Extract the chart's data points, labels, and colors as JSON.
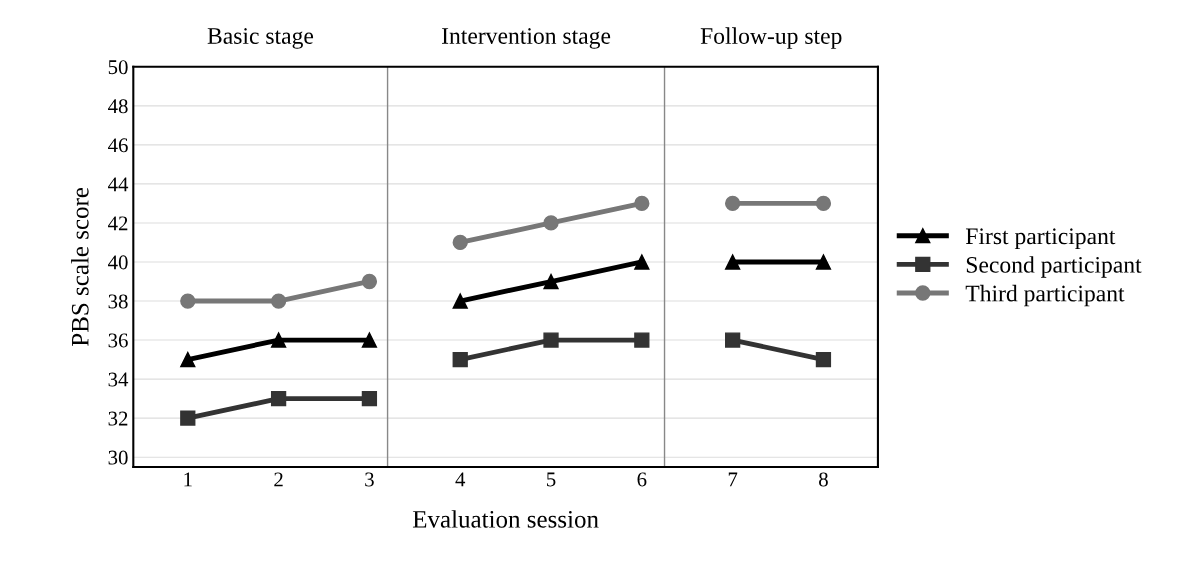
{
  "chart_data": {
    "type": "line",
    "xlabel": "Evaluation session",
    "ylabel": "PBS scale score",
    "x": [
      1,
      2,
      3,
      4,
      5,
      6,
      7,
      8
    ],
    "xlim": [
      0.4,
      8.6
    ],
    "xticks": [
      1,
      2,
      3,
      4,
      5,
      6,
      7,
      8
    ],
    "ylim": [
      29.5,
      50
    ],
    "yticks": [
      30,
      32,
      34,
      36,
      38,
      40,
      42,
      44,
      46,
      48,
      50
    ],
    "grid": "y",
    "legend": "right",
    "series": [
      {
        "name": "First participant",
        "color": "#000000",
        "marker": "triangle",
        "values": [
          35,
          36,
          36,
          38,
          39,
          40,
          40,
          40
        ]
      },
      {
        "name": "Second participant",
        "color": "#333333",
        "marker": "square",
        "values": [
          32,
          33,
          33,
          35,
          36,
          36,
          36,
          35
        ]
      },
      {
        "name": "Third participant",
        "color": "#777777",
        "marker": "circle",
        "values": [
          38,
          38,
          39,
          41,
          42,
          43,
          43,
          43
        ]
      }
    ],
    "ref_lines": [
      {
        "axis": "x",
        "value": 3.2,
        "color": "#888888"
      },
      {
        "axis": "x",
        "value": 6.25,
        "color": "#888888"
      }
    ],
    "annotations": [
      "Basic stage",
      "Intervention stage",
      "Follow-up step"
    ]
  }
}
